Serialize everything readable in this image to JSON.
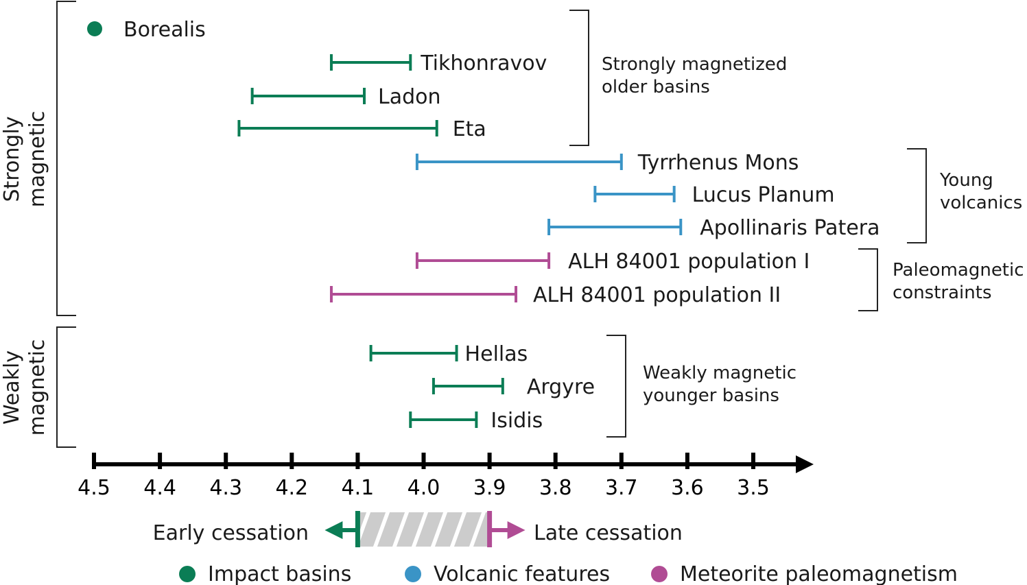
{
  "chart_data": {
    "type": "range",
    "xlim": [
      4.5,
      3.5
    ],
    "x_reversed": true,
    "x_ticks": [
      "4.5",
      "4.4",
      "4.3",
      "4.2",
      "4.1",
      "4.0",
      "3.9",
      "3.8",
      "3.7",
      "3.6",
      "3.5"
    ],
    "colors": {
      "impact": "#0b7d55",
      "volcanic": "#3a94c6",
      "meteorite": "#b04c94",
      "hatch": "#cccccc"
    },
    "items": [
      {
        "name": "Borealis",
        "category": "impact",
        "start": 4.5,
        "end": 4.5,
        "point": true
      },
      {
        "name": "Tikhonravov",
        "category": "impact",
        "start": 4.14,
        "end": 4.02
      },
      {
        "name": "Ladon",
        "category": "impact",
        "start": 4.26,
        "end": 4.09
      },
      {
        "name": "Eta",
        "category": "impact",
        "start": 4.28,
        "end": 3.98
      },
      {
        "name": "Tyrrhenus Mons",
        "category": "volcanic",
        "start": 4.01,
        "end": 3.7
      },
      {
        "name": "Lucus Planum",
        "category": "volcanic",
        "start": 3.74,
        "end": 3.62
      },
      {
        "name": "Apollinaris Patera",
        "category": "volcanic",
        "start": 3.81,
        "end": 3.61
      },
      {
        "name": "ALH 84001 population I",
        "category": "meteorite",
        "start": 4.01,
        "end": 3.81
      },
      {
        "name": "ALH 84001 population II",
        "category": "meteorite",
        "start": 4.14,
        "end": 3.86
      },
      {
        "name": "Hellas",
        "category": "impact",
        "start": 4.08,
        "end": 3.95
      },
      {
        "name": "Argyre",
        "category": "impact",
        "start": 3.985,
        "end": 3.88
      },
      {
        "name": "Isidis",
        "category": "impact",
        "start": 4.02,
        "end": 3.92
      }
    ],
    "groups": {
      "left": [
        "Strongly magnetic",
        "Weakly magnetic"
      ],
      "right": [
        [
          "Strongly magnetized",
          "older basins"
        ],
        [
          "Young",
          "volcanics"
        ],
        [
          "Paleomagnetic",
          "constraints"
        ],
        [
          "Weakly magnetic",
          "younger basins"
        ]
      ]
    },
    "cessation": {
      "early_label": "Early cessation",
      "late_label": "Late cessation",
      "early": 4.1,
      "late": 3.9
    },
    "legend": [
      {
        "label": "Impact basins",
        "category": "impact"
      },
      {
        "label": "Volcanic features",
        "category": "volcanic"
      },
      {
        "label": "Meteorite paleomagnetism",
        "category": "meteorite"
      }
    ]
  }
}
